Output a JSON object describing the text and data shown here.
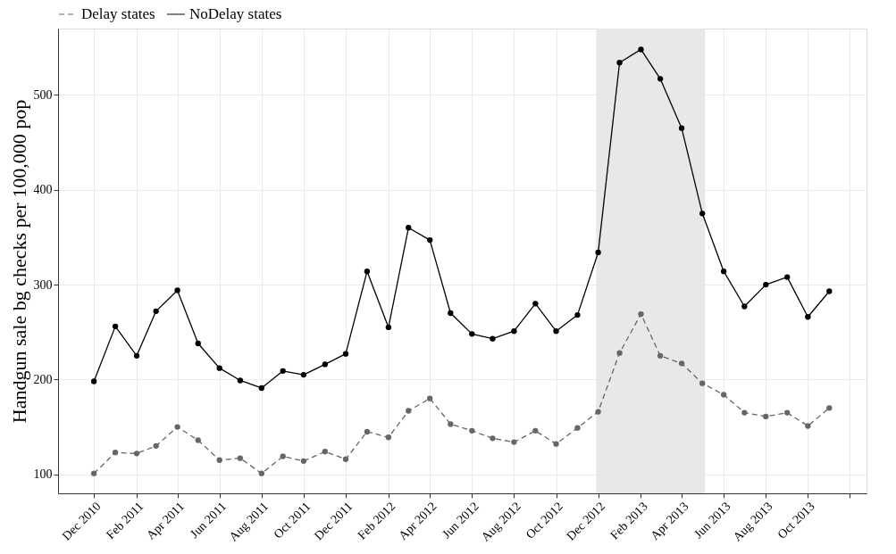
{
  "chart_data": {
    "type": "line",
    "ylabel": "Handgun sale bg checks per 100,000 pop",
    "x": [
      "2010-12",
      "2011-01",
      "2011-02",
      "2011-03",
      "2011-04",
      "2011-05",
      "2011-06",
      "2011-07",
      "2011-08",
      "2011-09",
      "2011-10",
      "2011-11",
      "2011-12",
      "2012-01",
      "2012-02",
      "2012-03",
      "2012-04",
      "2012-05",
      "2012-06",
      "2012-07",
      "2012-08",
      "2012-09",
      "2012-10",
      "2012-11",
      "2012-12",
      "2013-01",
      "2013-02",
      "2013-03",
      "2013-04",
      "2013-05",
      "2013-06",
      "2013-07",
      "2013-08",
      "2013-09",
      "2013-10",
      "2013-11"
    ],
    "series": [
      {
        "name": "Delay states",
        "color": "#666666",
        "line_style": "dashed",
        "values": [
          101,
          123,
          122,
          130,
          150,
          136,
          115,
          117,
          101,
          119,
          114,
          124,
          116,
          145,
          139,
          167,
          180,
          153,
          146,
          138,
          134,
          146,
          132,
          149,
          166,
          228,
          269,
          225,
          217,
          196,
          184,
          165,
          161,
          165,
          151,
          170
        ]
      },
      {
        "name": "NoDelay states",
        "color": "#000000",
        "line_style": "solid",
        "values": [
          198,
          256,
          225,
          272,
          294,
          238,
          212,
          199,
          191,
          209,
          205,
          216,
          227,
          314,
          255,
          360,
          347,
          270,
          248,
          243,
          251,
          280,
          251,
          268,
          334,
          534,
          548,
          517,
          465,
          375,
          314,
          277,
          300,
          308,
          266,
          293
        ]
      }
    ],
    "marker": "circle",
    "ylim": [
      80,
      570
    ],
    "yticks": [
      100,
      200,
      300,
      400,
      500
    ],
    "xlim": [
      "2010-10-10",
      "2013-12-25"
    ],
    "xticks": [
      {
        "value": "2010-12",
        "label": "Dec 2010"
      },
      {
        "value": "2011-02",
        "label": "Feb 2011"
      },
      {
        "value": "2011-04",
        "label": "Apr 2011"
      },
      {
        "value": "2011-06",
        "label": "Jun 2011"
      },
      {
        "value": "2011-08",
        "label": "Aug 2011"
      },
      {
        "value": "2011-10",
        "label": "Oct 2011"
      },
      {
        "value": "2011-12",
        "label": "Dec 2011"
      },
      {
        "value": "2012-02",
        "label": "Feb 2012"
      },
      {
        "value": "2012-04",
        "label": "Apr 2012"
      },
      {
        "value": "2012-06",
        "label": "Jun 2012"
      },
      {
        "value": "2012-08",
        "label": "Aug 2012"
      },
      {
        "value": "2012-10",
        "label": "Oct 2012"
      },
      {
        "value": "2012-12",
        "label": "Dec 2012"
      },
      {
        "value": "2013-02",
        "label": "Feb 2013"
      },
      {
        "value": "2013-04",
        "label": "Apr 2013"
      },
      {
        "value": "2013-06",
        "label": "Jun 2013"
      },
      {
        "value": "2013-08",
        "label": "Aug 2013"
      },
      {
        "value": "2013-10",
        "label": "Oct 2013"
      },
      {
        "value": "2013-12",
        "label": null
      }
    ],
    "bands": [
      {
        "axis": "x",
        "from": "2012-11-28",
        "to": "2013-05-05",
        "color": "#e5e5e5"
      }
    ],
    "grid": true,
    "legend": "top left"
  }
}
